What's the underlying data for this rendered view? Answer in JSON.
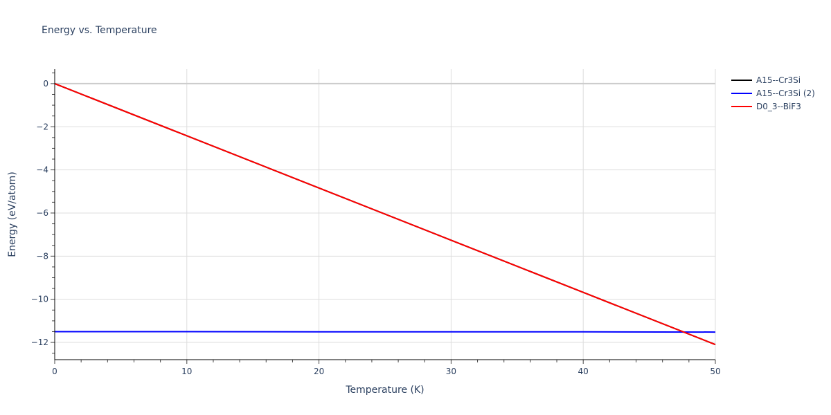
{
  "title": "Energy vs. Temperature",
  "legend": {
    "items": [
      {
        "label": "A15--Cr3Si",
        "color": "#000000"
      },
      {
        "label": "A15--Cr3Si (2)",
        "color": "#0000ff"
      },
      {
        "label": "D0_3--BiF3",
        "color": "#ff0000"
      }
    ]
  },
  "axes": {
    "xlabel": "Temperature (K)",
    "ylabel": "Energy (eV/atom)",
    "xticks": [
      "0",
      "10",
      "20",
      "30",
      "40",
      "50"
    ],
    "yticks": [
      "0",
      "−2",
      "−4",
      "−6",
      "−8",
      "−10",
      "−12"
    ]
  },
  "chart_data": {
    "type": "line",
    "title": "Energy vs. Temperature",
    "xlabel": "Temperature (K)",
    "ylabel": "Energy (eV/atom)",
    "xlim": [
      0,
      50
    ],
    "ylim": [
      -12.8,
      0.67
    ],
    "grid": true,
    "legend_position": "right",
    "x": [
      0,
      10,
      20,
      30,
      40,
      50
    ],
    "series": [
      {
        "name": "A15--Cr3Si",
        "color": "#000000",
        "values": [
          0,
          -2.42,
          -4.84,
          -7.26,
          -9.68,
          -12.1
        ]
      },
      {
        "name": "A15--Cr3Si (2)",
        "color": "#0000ff",
        "values": [
          -11.5,
          -11.5,
          -11.51,
          -11.51,
          -11.51,
          -11.52
        ]
      },
      {
        "name": "D0_3--BiF3",
        "color": "#ff0000",
        "values": [
          0,
          -2.42,
          -4.84,
          -7.26,
          -9.68,
          -12.1
        ]
      }
    ]
  }
}
